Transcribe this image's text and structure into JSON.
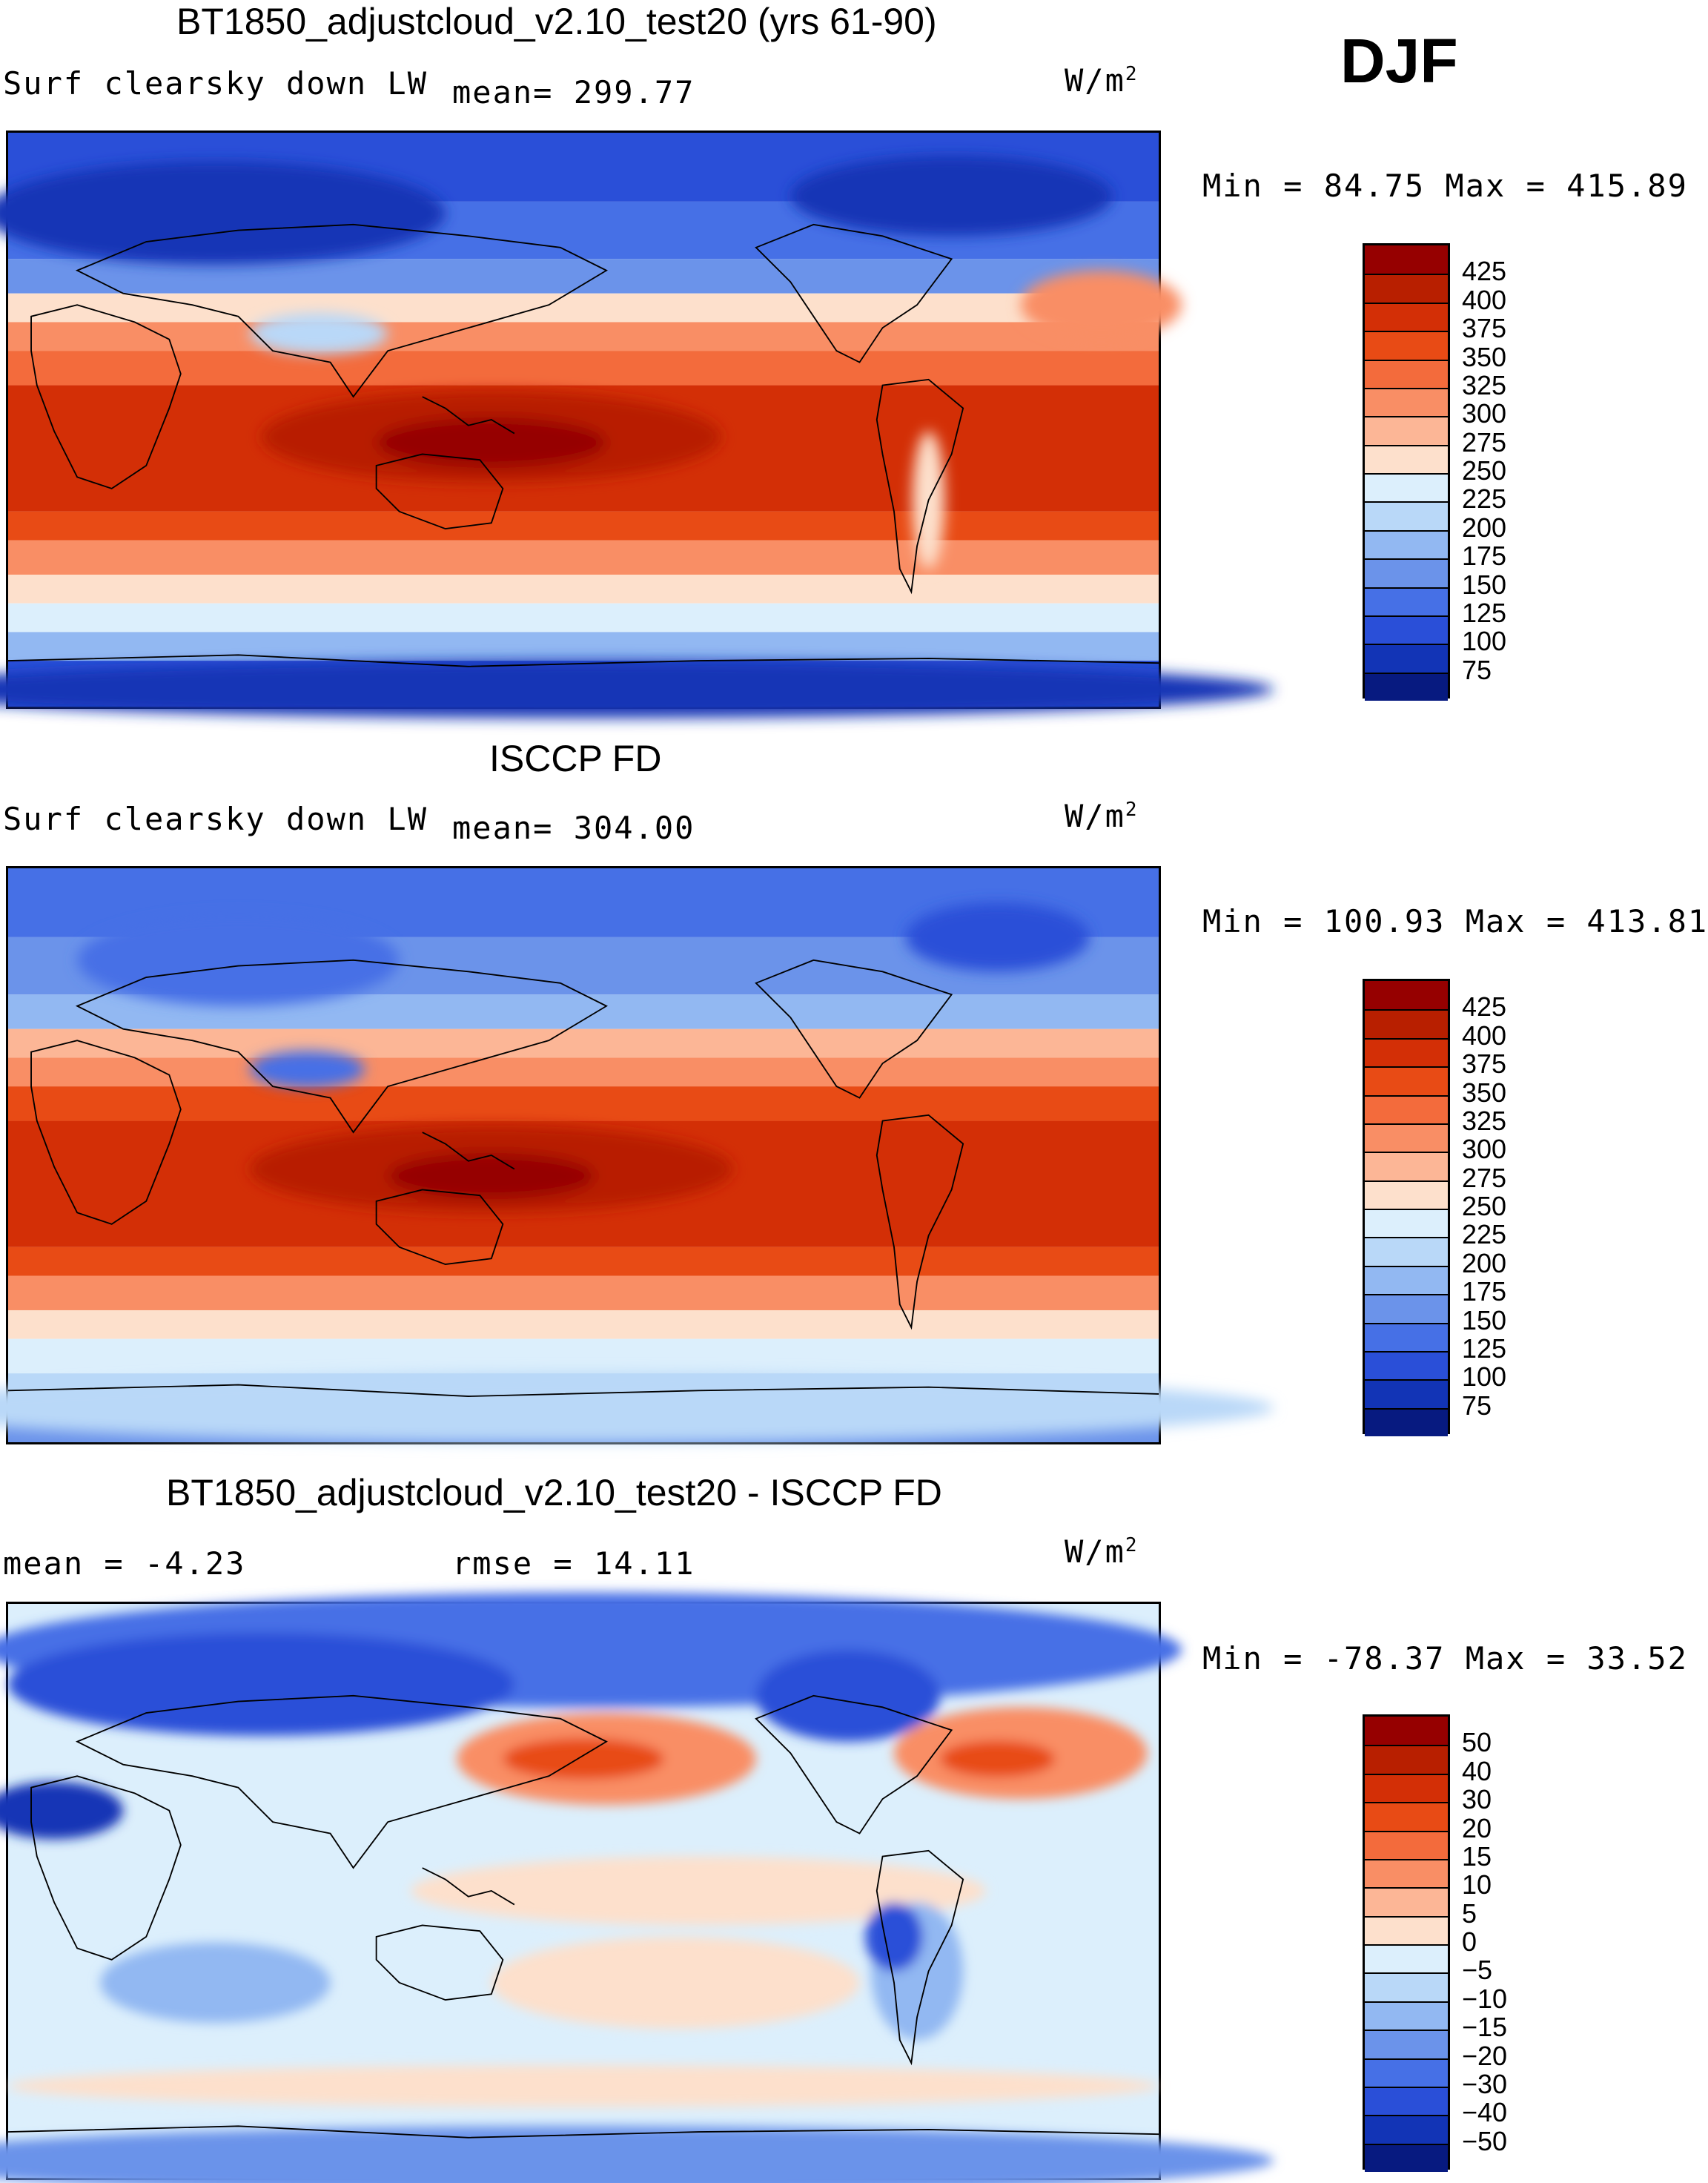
{
  "season": "DJF",
  "units": "W/m",
  "units_sup": "2",
  "panels": [
    {
      "title": "BT1850_adjustcloud_v2.10_test20 (yrs 61-90)",
      "variable": "Surf clearsky down LW",
      "mean": "mean= 299.77",
      "minmax": "Min =  84.75 Max = 415.89",
      "kind": "absolute"
    },
    {
      "title": "ISCCP FD",
      "variable": "Surf clearsky down LW",
      "mean": "mean= 304.00",
      "minmax": "Min = 100.93 Max = 413.81",
      "kind": "absolute"
    },
    {
      "title": "BT1850_adjustcloud_v2.10_test20 - ISCCP FD",
      "mean": "mean =  -4.23",
      "rmse": "rmse =  14.11",
      "minmax": "Min = -78.37 Max =  33.52",
      "kind": "difference"
    }
  ],
  "chart_data": [
    {
      "type": "heatmap",
      "title": "BT1850_adjustcloud_v2.10_test20 (yrs 61-90)",
      "field": "Surf clearsky down LW",
      "season": "DJF",
      "units": "W/m2",
      "mean": 299.77,
      "min": 84.75,
      "max": 415.89,
      "projection": "cylindrical equidistant, centered 180",
      "lon_range": [
        0,
        360
      ],
      "lat_range": [
        -90,
        90
      ],
      "contour_levels": [
        75,
        100,
        125,
        150,
        175,
        200,
        225,
        250,
        275,
        300,
        325,
        350,
        375,
        400,
        425
      ],
      "colorbar_labels": [
        "425",
        "400",
        "375",
        "350",
        "325",
        "300",
        "275",
        "250",
        "225",
        "200",
        "175",
        "150",
        "125",
        "100",
        "75"
      ],
      "colorbar_colors": [
        "#960000",
        "#b81f00",
        "#d32f06",
        "#e84b15",
        "#f36b3c",
        "#f98e65",
        "#fcb696",
        "#fde0cc",
        "#dceffc",
        "#b9d8f8",
        "#92b8f2",
        "#6b93ea",
        "#4670e6",
        "#2a4fd8",
        "#1234b6",
        "#071a80"
      ]
    },
    {
      "type": "heatmap",
      "title": "ISCCP FD",
      "field": "Surf clearsky down LW",
      "season": "DJF",
      "units": "W/m2",
      "mean": 304.0,
      "min": 100.93,
      "max": 413.81,
      "projection": "cylindrical equidistant, centered 180",
      "lon_range": [
        0,
        360
      ],
      "lat_range": [
        -90,
        90
      ],
      "contour_levels": [
        75,
        100,
        125,
        150,
        175,
        200,
        225,
        250,
        275,
        300,
        325,
        350,
        375,
        400,
        425
      ],
      "colorbar_labels": [
        "425",
        "400",
        "375",
        "350",
        "325",
        "300",
        "275",
        "250",
        "225",
        "200",
        "175",
        "150",
        "125",
        "100",
        "75"
      ],
      "colorbar_colors": [
        "#960000",
        "#b81f00",
        "#d32f06",
        "#e84b15",
        "#f36b3c",
        "#f98e65",
        "#fcb696",
        "#fde0cc",
        "#dceffc",
        "#b9d8f8",
        "#92b8f2",
        "#6b93ea",
        "#4670e6",
        "#2a4fd8",
        "#1234b6",
        "#071a80"
      ]
    },
    {
      "type": "heatmap",
      "title": "BT1850_adjustcloud_v2.10_test20 - ISCCP FD",
      "field": "difference",
      "season": "DJF",
      "units": "W/m2",
      "mean": -4.23,
      "rmse": 14.11,
      "min": -78.37,
      "max": 33.52,
      "projection": "cylindrical equidistant, centered 180",
      "lon_range": [
        0,
        360
      ],
      "lat_range": [
        -90,
        90
      ],
      "contour_levels": [
        -50,
        -40,
        -30,
        -20,
        -15,
        -10,
        -5,
        0,
        5,
        10,
        15,
        20,
        30,
        40,
        50
      ],
      "colorbar_labels": [
        "50",
        "40",
        "30",
        "20",
        "15",
        "10",
        "5",
        "0",
        "−5",
        "−10",
        "−15",
        "−20",
        "−30",
        "−40",
        "−50"
      ],
      "colorbar_colors": [
        "#960000",
        "#b81f00",
        "#d32f06",
        "#e84b15",
        "#f36b3c",
        "#f98e65",
        "#fcb696",
        "#fde0cc",
        "#dceffc",
        "#b9d8f8",
        "#92b8f2",
        "#6b93ea",
        "#4670e6",
        "#2a4fd8",
        "#1234b6",
        "#071a80"
      ]
    }
  ]
}
